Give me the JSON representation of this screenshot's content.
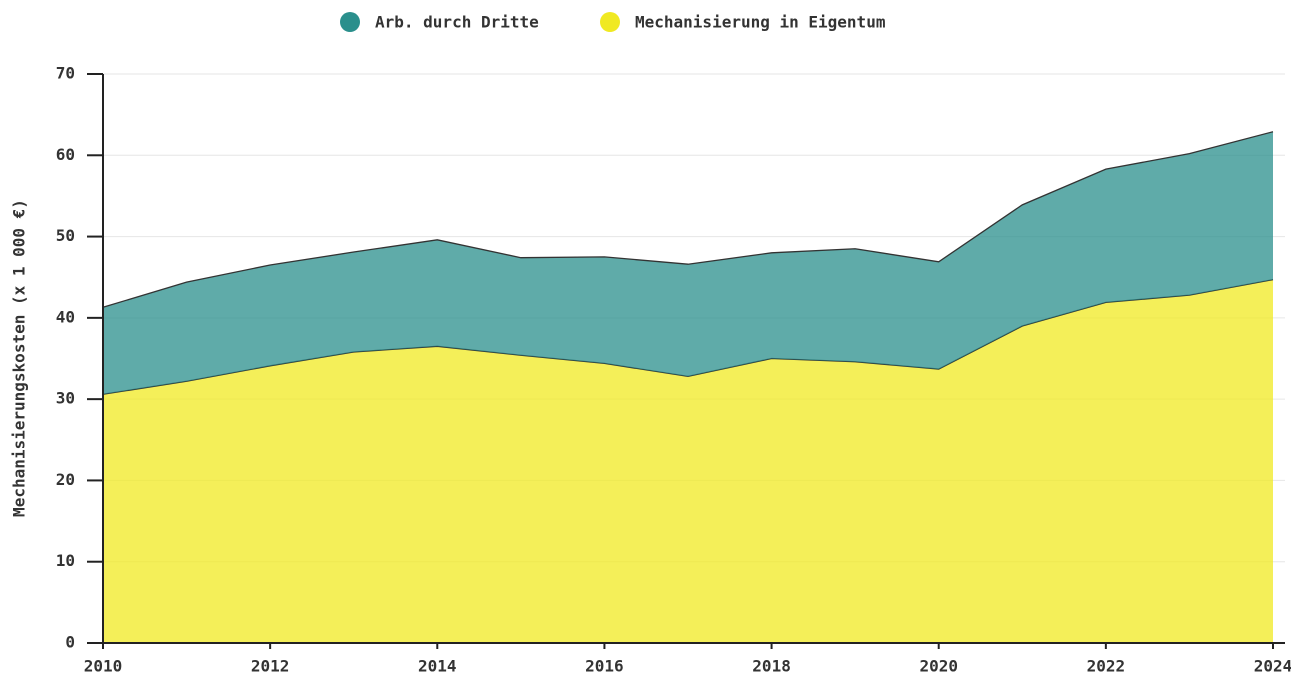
{
  "chart_data": {
    "type": "stacked_area",
    "ylabel": "Mechanisierungskosten (x 1 000 €)",
    "x": [
      2010,
      2011,
      2012,
      2013,
      2014,
      2015,
      2016,
      2017,
      2018,
      2019,
      2020,
      2021,
      2022,
      2023,
      2024
    ],
    "series": [
      {
        "name": "Arb. durch Dritte",
        "color": "#2a8f8c",
        "values": [
          10.7,
          12.2,
          12.4,
          12.3,
          13.1,
          12.0,
          13.1,
          13.8,
          13.0,
          13.9,
          13.2,
          14.9,
          16.4,
          17.4,
          18.2
        ]
      },
      {
        "name": "Mechanisierung in Eigentum",
        "color": "#f0e922",
        "values": [
          30.6,
          32.2,
          34.1,
          35.8,
          36.5,
          35.4,
          34.4,
          32.8,
          35.0,
          34.6,
          33.7,
          39.0,
          41.9,
          42.8,
          44.7
        ]
      }
    ],
    "xlim": [
      2010,
      2024
    ],
    "xticks": [
      2010,
      2012,
      2014,
      2016,
      2018,
      2020,
      2022,
      2024
    ],
    "ylim": [
      0,
      70
    ],
    "yticks": [
      0,
      10,
      20,
      30,
      40,
      50,
      60,
      70
    ],
    "grid": true,
    "legend": "top"
  }
}
